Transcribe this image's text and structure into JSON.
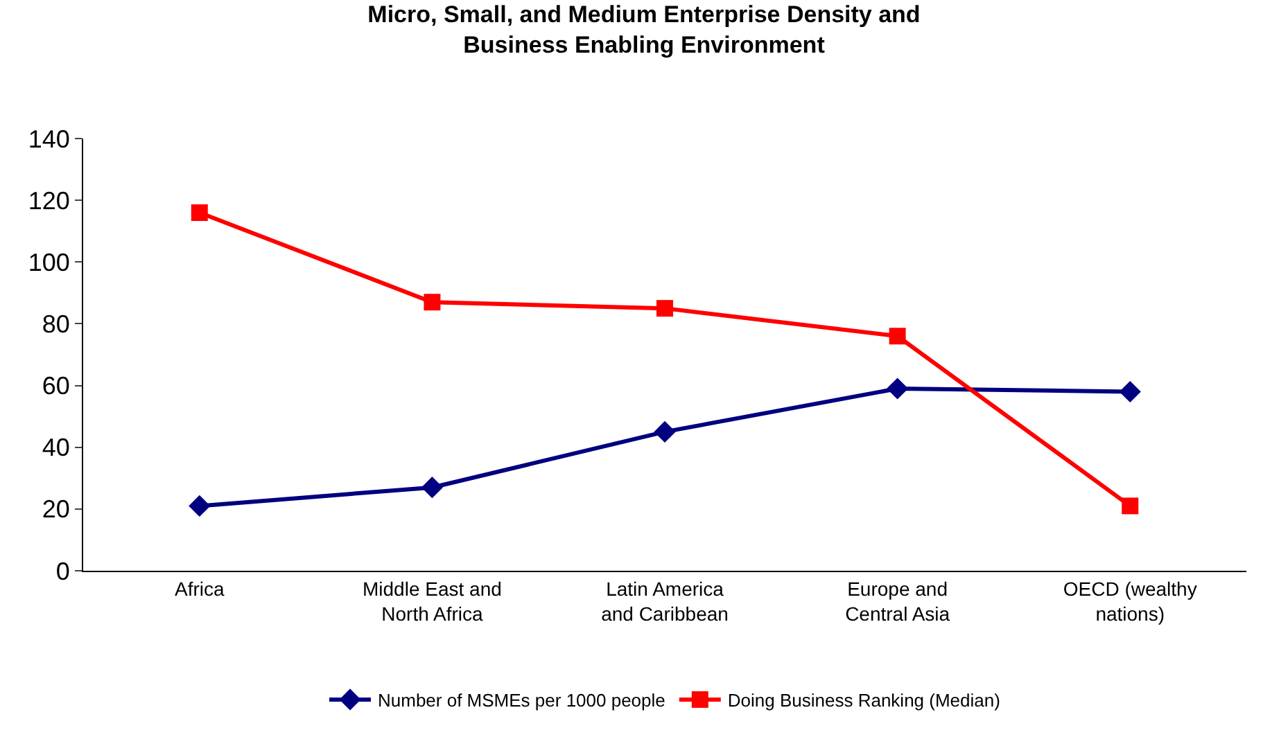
{
  "chart_data": {
    "type": "line",
    "title": "Micro, Small, and Medium Enterprise Density and\nBusiness Enabling Environment",
    "categories": [
      "Africa",
      "Middle East and\nNorth Africa",
      "Latin America\nand Caribbean",
      "Europe and\nCentral Asia",
      "OECD (wealthy\nnations)"
    ],
    "series": [
      {
        "name": "Number of MSMEs per 1000 people",
        "color": "#000080",
        "marker": "diamond",
        "values": [
          21,
          27,
          45,
          59,
          58
        ]
      },
      {
        "name": "Doing Business Ranking (Median)",
        "color": "#ff0000",
        "marker": "square",
        "values": [
          116,
          87,
          85,
          76,
          21
        ]
      }
    ],
    "ylim": [
      0,
      140
    ],
    "yticks": [
      0,
      20,
      40,
      60,
      80,
      100,
      120,
      140
    ],
    "legend": "bottom"
  }
}
